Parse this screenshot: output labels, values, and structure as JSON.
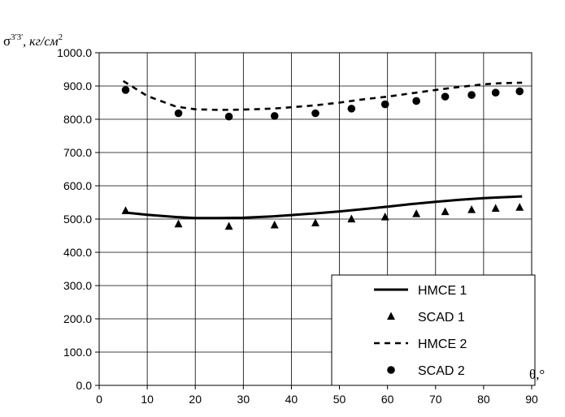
{
  "chart_data": {
    "type": "line",
    "ylabel_symbol": "σ",
    "ylabel_sup": "3'3'",
    "ylabel_units": ", кг/см",
    "ylabel_units_sup": "2",
    "xlabel": "θ,°",
    "xlim": [
      0,
      90
    ],
    "ylim": [
      0,
      1000
    ],
    "xticks": [
      "0",
      "10",
      "20",
      "30",
      "40",
      "50",
      "60",
      "70",
      "80",
      "90"
    ],
    "yticks": [
      "0.0",
      "100.0",
      "200.0",
      "300.0",
      "400.0",
      "500.0",
      "600.0",
      "700.0",
      "800.0",
      "900.0",
      "1000.0"
    ],
    "grid": true,
    "legend_position": "bottom-right",
    "series": [
      {
        "name": "НМСЕ 1",
        "style": "solid-line",
        "x": [
          5,
          10,
          16,
          20,
          25,
          30,
          36,
          40,
          45,
          50,
          55,
          60,
          65,
          70,
          75,
          80,
          83,
          88
        ],
        "y": [
          520,
          513,
          506,
          503,
          503,
          504,
          508,
          512,
          517,
          523,
          530,
          537,
          545,
          552,
          558,
          563,
          565,
          568
        ]
      },
      {
        "name": "SCAD 1",
        "style": "triangle-markers",
        "x": [
          5.5,
          16.5,
          27,
          36.5,
          45,
          52.5,
          59.5,
          66,
          72,
          77.5,
          82.5,
          87.5
        ],
        "y": [
          525,
          485,
          478,
          482,
          488,
          500,
          506,
          516,
          522,
          528,
          532,
          535
        ]
      },
      {
        "name": "НМСЕ 2",
        "style": "dashed-line",
        "x": [
          5,
          10,
          16,
          20,
          25,
          30,
          36,
          40,
          45,
          50,
          55,
          60,
          65,
          70,
          75,
          80,
          83,
          88
        ],
        "y": [
          915,
          870,
          838,
          830,
          828,
          829,
          832,
          836,
          842,
          850,
          860,
          868,
          878,
          888,
          897,
          905,
          908,
          910
        ]
      },
      {
        "name": "SCAD 2",
        "style": "circle-markers",
        "x": [
          5.5,
          16.5,
          27,
          36.5,
          45,
          52.5,
          59.5,
          66,
          72,
          77.5,
          82.5,
          87.5
        ],
        "y": [
          888,
          818,
          808,
          810,
          818,
          832,
          845,
          855,
          868,
          873,
          880,
          884
        ]
      }
    ]
  }
}
